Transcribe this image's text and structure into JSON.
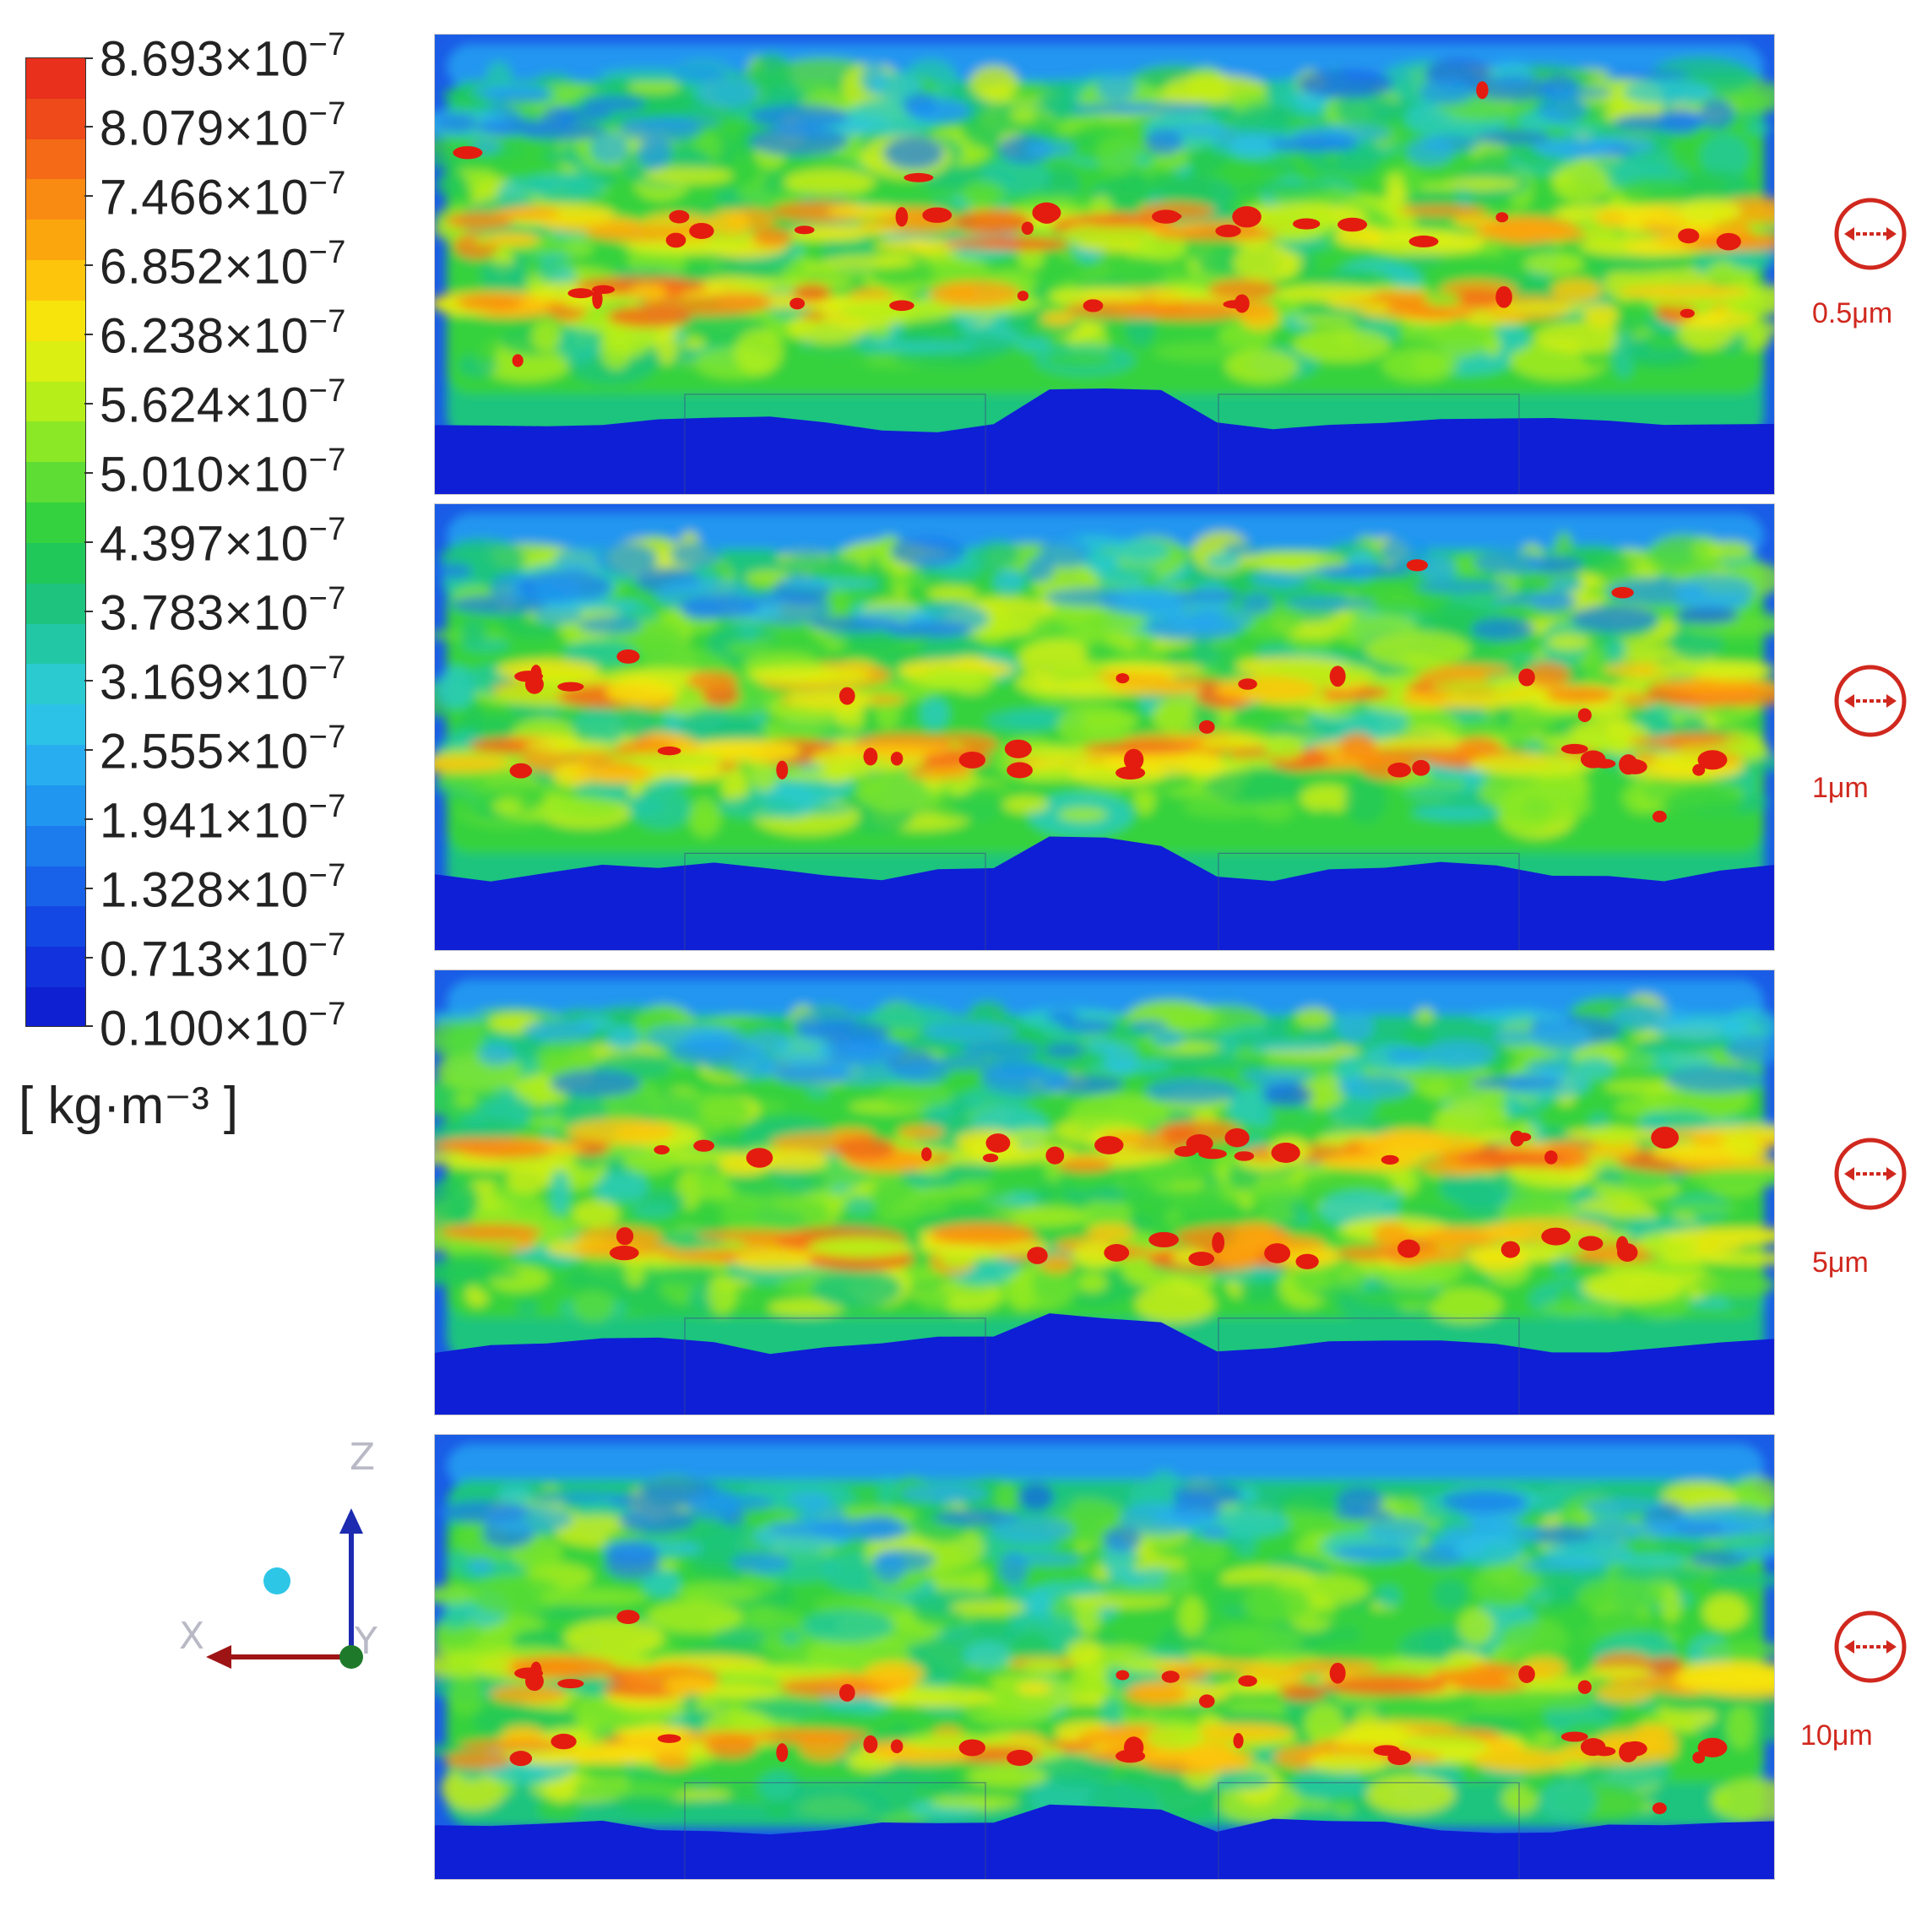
{
  "legend": {
    "labels": [
      {
        "mantissa": "8.693",
        "base": "×10",
        "exp": "−7"
      },
      {
        "mantissa": "8.079",
        "base": "×10",
        "exp": "−7"
      },
      {
        "mantissa": "7.466",
        "base": "×10",
        "exp": "−7"
      },
      {
        "mantissa": "6.852",
        "base": "×10",
        "exp": "−7"
      },
      {
        "mantissa": "6.238",
        "base": "×10",
        "exp": "−7"
      },
      {
        "mantissa": "5.624",
        "base": "×10",
        "exp": "−7"
      },
      {
        "mantissa": "5.010",
        "base": "×10",
        "exp": "−7"
      },
      {
        "mantissa": "4.397",
        "base": "×10",
        "exp": "−7"
      },
      {
        "mantissa": "3.783",
        "base": "×10",
        "exp": "−7"
      },
      {
        "mantissa": "3.169",
        "base": "×10",
        "exp": "−7"
      },
      {
        "mantissa": "2.555",
        "base": "×10",
        "exp": "−7"
      },
      {
        "mantissa": "1.941",
        "base": "×10",
        "exp": "−7"
      },
      {
        "mantissa": "1.328",
        "base": "×10",
        "exp": "−7"
      },
      {
        "mantissa": "0.713",
        "base": "×10",
        "exp": "−7"
      },
      {
        "mantissa": "0.100",
        "base": "×10",
        "exp": "−7"
      }
    ],
    "unit": "[ kg·m⁻³ ]",
    "colors": [
      "#e8301c",
      "#ee4a1a",
      "#f46a16",
      "#f98a12",
      "#fca60e",
      "#fdc60c",
      "#f6e40c",
      "#dcef12",
      "#b6ee1a",
      "#8ae826",
      "#5edd34",
      "#34d23e",
      "#20c85a",
      "#1ec47e",
      "#22c8a6",
      "#2acad0",
      "#2cc2e8",
      "#28aef0",
      "#2096f0",
      "#1c7cee",
      "#1862ea",
      "#1448e4",
      "#1132dc",
      "#0e20d2"
    ],
    "min": 1e-08,
    "max": 8.693e-07
  },
  "panels": [
    {
      "label": "0.5μm"
    },
    {
      "label": "1μm"
    },
    {
      "label": "5μm"
    },
    {
      "label": "10μm"
    }
  ],
  "triad": {
    "z": "Z",
    "x": "X",
    "y": "Y"
  },
  "colors": {
    "scale_red": "#d0281e",
    "background_blue": "#0f1fd6"
  }
}
